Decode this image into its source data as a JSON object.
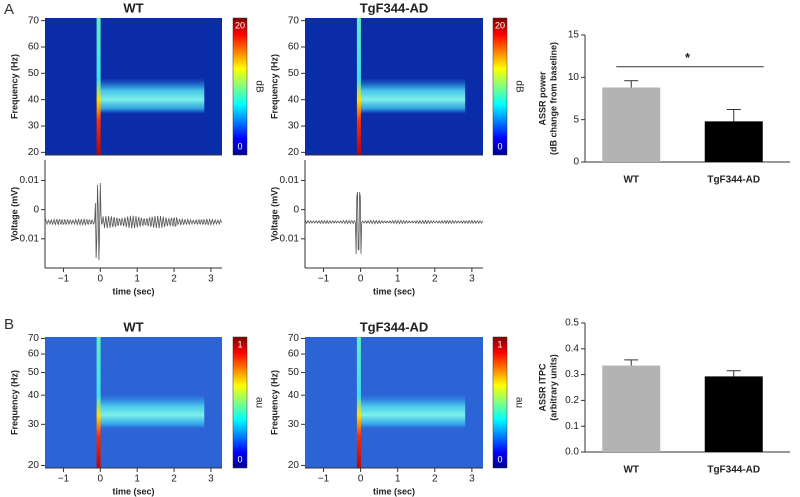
{
  "panels": [
    "A",
    "B"
  ],
  "chart_data": [
    {
      "type": "spectrogram",
      "title": "WT",
      "ylabel": "Frequency (Hz)",
      "clabel": "dB",
      "color": "#0a2ca8",
      "xlim": [
        -1.5,
        3.3
      ],
      "ylim": [
        19,
        71
      ],
      "yticks": [
        20,
        30,
        40,
        50,
        60,
        70
      ],
      "clim": [
        0,
        20
      ],
      "cticks": [
        0,
        20
      ]
    },
    {
      "type": "spectrogram",
      "title": "TgF344-AD",
      "ylabel": "Frequency (Hz)",
      "clabel": "dB",
      "color": "#0a2ca8",
      "xlim": [
        -1.5,
        3.3
      ],
      "ylim": [
        19,
        71
      ],
      "yticks": [
        20,
        30,
        40,
        50,
        60,
        70
      ],
      "clim": [
        0,
        20
      ],
      "cticks": [
        0,
        20
      ]
    },
    {
      "type": "bar",
      "ylabel": [
        "ASSR power",
        "(dB change from baseline)"
      ],
      "categories": [
        "WT",
        "TgF344-AD"
      ],
      "values": [
        8.8,
        4.8
      ],
      "errors": [
        0.8,
        1.4
      ],
      "colors": [
        "#b3b3b3",
        "#000000"
      ],
      "ylim": [
        0,
        15
      ],
      "yticks": [
        0,
        5,
        10,
        15
      ],
      "annotation": "*"
    },
    {
      "type": "trace",
      "ylabel": "Voltage (mV)",
      "xlabel": "time (sec)",
      "xlim": [
        -1.5,
        3.3
      ],
      "ylim": [
        -0.02,
        0.017
      ],
      "xticks": [
        {
          "value": -1,
          "label": "−1"
        },
        0,
        1,
        2,
        3
      ],
      "yticks": [
        -0.01,
        0,
        0.01
      ]
    },
    {
      "type": "trace",
      "ylabel": "Voltage (mV)",
      "xlabel": "time (sec)",
      "xlim": [
        -1.5,
        3.3
      ],
      "ylim": [
        -0.02,
        0.017
      ],
      "xticks": [
        {
          "value": -1,
          "label": "−1"
        },
        0,
        1,
        2,
        3
      ],
      "yticks": [
        -0.01,
        0,
        0.01
      ]
    },
    {
      "type": "spectrogram",
      "title": "WT",
      "ylabel": "Frequency (Hz)",
      "xlabel": "time (sec)",
      "clabel": "au",
      "color": "#2c64d6",
      "log_y": true,
      "xlim": [
        -1.5,
        3.3
      ],
      "ylim": [
        19.5,
        71
      ],
      "xticks": [
        {
          "value": -1,
          "label": "−1"
        },
        0,
        1,
        2,
        3
      ],
      "yticks": [
        20,
        30,
        40,
        50,
        60,
        70
      ],
      "clim": [
        0,
        1
      ],
      "cticks": [
        0,
        1
      ]
    },
    {
      "type": "spectrogram",
      "title": "TgF344-AD",
      "ylabel": "Frequency (Hz)",
      "xlabel": "time (sec)",
      "clabel": "au",
      "color": "#2c64d6",
      "log_y": true,
      "xlim": [
        -1.5,
        3.3
      ],
      "ylim": [
        19.5,
        71
      ],
      "xticks": [
        {
          "value": -1,
          "label": "−1"
        },
        0,
        1,
        2,
        3
      ],
      "yticks": [
        20,
        30,
        40,
        50,
        60,
        70
      ],
      "clim": [
        0,
        1
      ],
      "cticks": [
        0,
        1
      ]
    },
    {
      "type": "bar",
      "ylabel": [
        "ASSR ITPC",
        "(arbitrary units)"
      ],
      "categories": [
        "WT",
        "TgF344-AD"
      ],
      "values": [
        0.335,
        0.293
      ],
      "errors": [
        0.022,
        0.022
      ],
      "colors": [
        "#b3b3b3",
        "#000000"
      ],
      "ylim": [
        0,
        0.5
      ],
      "yticks": [
        {
          "value": 0,
          "label": "0.0"
        },
        0.1,
        0.2,
        0.3,
        0.4,
        0.5
      ]
    }
  ]
}
